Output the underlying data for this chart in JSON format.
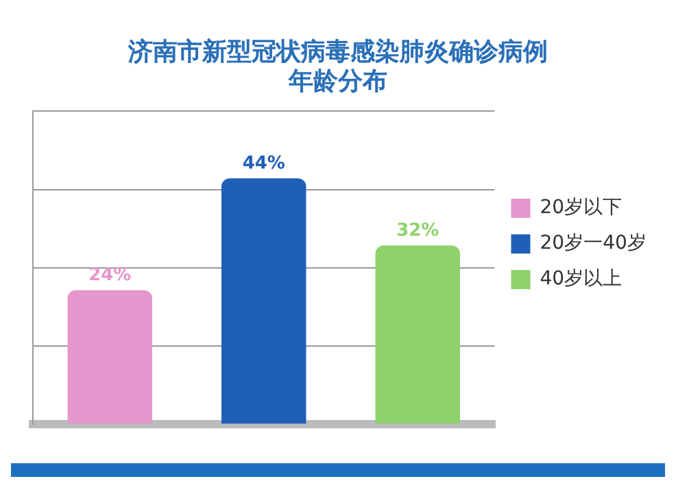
{
  "chart_data": {
    "type": "bar",
    "title": [
      "济南市新型冠状病毒感染肺炎确诊病例",
      "年龄分布"
    ],
    "categories": [
      null,
      null,
      null
    ],
    "stacked": true,
    "series": [
      {
        "name": "20岁以下",
        "color": "#e596cc",
        "values": [
          24,
          null,
          null
        ],
        "value_labels": [
          "24%",
          null,
          null
        ]
      },
      {
        "name": "20岁一40岁",
        "color": "#1f5fb8",
        "values": [
          null,
          44,
          null
        ],
        "value_labels": [
          null,
          "44%",
          null
        ]
      },
      {
        "name": "40岁以上",
        "color": "#8fd26c",
        "values": [
          null,
          null,
          32
        ],
        "value_labels": [
          null,
          null,
          "32%"
        ]
      }
    ],
    "ylim": [
      0,
      56
    ],
    "yticks": [
      {
        "value": 0,
        "label": null
      },
      {
        "value": 14,
        "label": null
      },
      {
        "value": 28,
        "label": null
      },
      {
        "value": 42,
        "label": null
      },
      {
        "value": 56,
        "label": null
      }
    ],
    "grid": "y",
    "legend": "right"
  }
}
